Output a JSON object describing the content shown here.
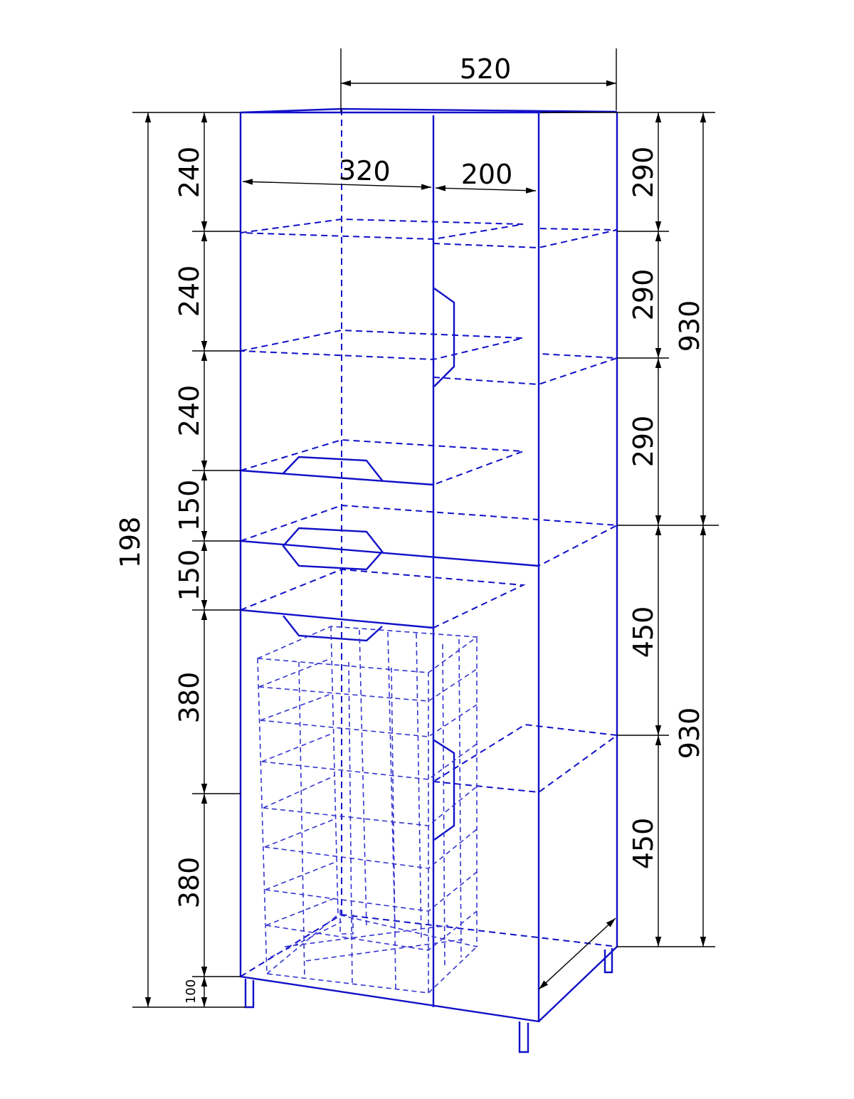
{
  "drawing": {
    "overall_height_label": "198",
    "width_label": "520",
    "left_section_width_label": "320",
    "right_section_width_label": "200",
    "left_column_dims": [
      "240",
      "240",
      "240",
      "150",
      "150",
      "380",
      "380",
      "100"
    ],
    "right_inner_dims": [
      "290",
      "290",
      "290",
      "450",
      "450"
    ],
    "right_outer_dims": [
      "930",
      "930"
    ],
    "line_color": "#1010c8",
    "dimension_color": "#000000"
  }
}
